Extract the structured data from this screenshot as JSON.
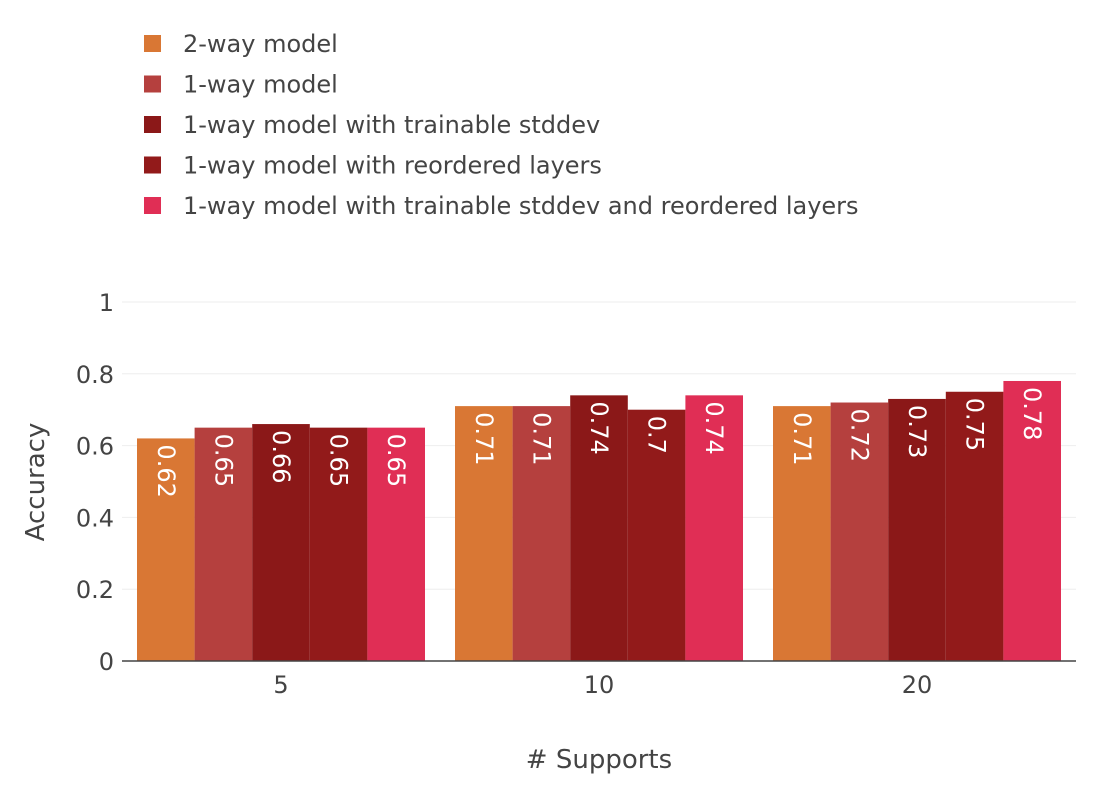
{
  "chart_data": {
    "type": "bar",
    "categories": [
      "5",
      "10",
      "20"
    ],
    "series": [
      {
        "name": "2-way model",
        "color": "#d97734",
        "values": [
          0.62,
          0.71,
          0.71
        ]
      },
      {
        "name": "1-way model",
        "color": "#b5403e",
        "values": [
          0.65,
          0.71,
          0.72
        ]
      },
      {
        "name": "1-way model with trainable stddev",
        "color": "#8b1818",
        "values": [
          0.66,
          0.74,
          0.73
        ]
      },
      {
        "name": "1-way model with reordered layers",
        "color": "#921a1a",
        "values": [
          0.65,
          0.7,
          0.75
        ]
      },
      {
        "name": "1-way model with trainable stddev and reordered layers",
        "color": "#e02e55",
        "values": [
          0.65,
          0.74,
          0.78
        ]
      }
    ],
    "data_labels": [
      [
        "0.62",
        "0.71",
        "0.71"
      ],
      [
        "0.65",
        "0.71",
        "0.72"
      ],
      [
        "0.66",
        "0.74",
        "0.73"
      ],
      [
        "0.65",
        "0.7",
        "0.75"
      ],
      [
        "0.65",
        "0.74",
        "0.78"
      ]
    ],
    "title": "",
    "xlabel": "# Supports",
    "ylabel": "Accuracy",
    "ylim": [
      0,
      1
    ],
    "yticks": [
      0,
      0.2,
      0.4,
      0.6,
      0.8,
      1
    ],
    "ytick_labels": [
      "0",
      "0.2",
      "0.4",
      "0.6",
      "0.8",
      "1"
    ],
    "grid": true,
    "legend_position": "top-left"
  }
}
